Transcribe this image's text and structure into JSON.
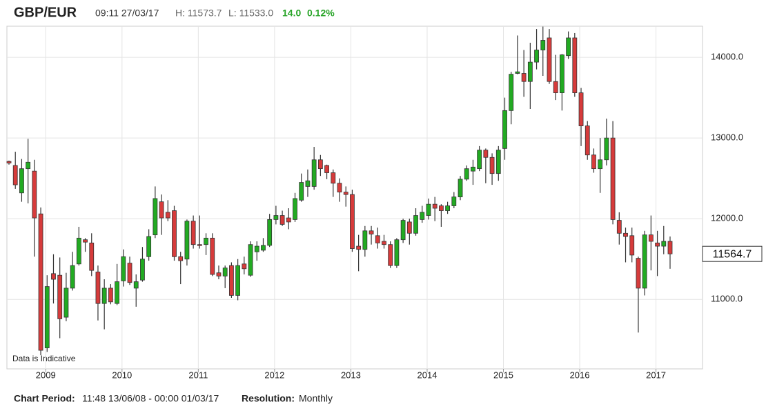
{
  "header": {
    "instrument": "GBP/EUR",
    "time": "09:11 27/03/17",
    "high": "H: 11573.7",
    "low": "L: 11533.0",
    "change": "14.0",
    "change_pct": "0.12%"
  },
  "footer": {
    "period_label": "Chart Period:",
    "period": "11:48 13/06/08 - 00:00 01/03/17",
    "resolution_label": "Resolution:",
    "resolution": "Monthly"
  },
  "chart_data": {
    "type": "candlestick",
    "annotation": "Data is Indicative",
    "up_color": "#22aa22",
    "down_color": "#d63b3b",
    "grid": true,
    "ylim": [
      10140,
      14385
    ],
    "yticks": [
      {
        "value": 11000,
        "label": "11000.0"
      },
      {
        "value": 12000,
        "label": "12000.0"
      },
      {
        "value": 13000,
        "label": "13000.0"
      },
      {
        "value": 14000,
        "label": "14000.0"
      }
    ],
    "categories": [
      null,
      null,
      null,
      null,
      null,
      null,
      "2009",
      null,
      null,
      null,
      null,
      null,
      null,
      null,
      null,
      null,
      null,
      null,
      "2010",
      null,
      null,
      null,
      null,
      null,
      null,
      null,
      null,
      null,
      null,
      null,
      "2011",
      null,
      null,
      null,
      null,
      null,
      null,
      null,
      null,
      null,
      null,
      null,
      "2012",
      null,
      null,
      null,
      null,
      null,
      null,
      null,
      null,
      null,
      null,
      null,
      "2013",
      null,
      null,
      null,
      null,
      null,
      null,
      null,
      null,
      null,
      null,
      null,
      "2014",
      null,
      null,
      null,
      null,
      null,
      null,
      null,
      null,
      null,
      null,
      null,
      "2015",
      null,
      null,
      null,
      null,
      null,
      null,
      null,
      null,
      null,
      null,
      null,
      "2016",
      null,
      null,
      null,
      null,
      null,
      null,
      null,
      null,
      null,
      null,
      null,
      "2017",
      null,
      null
    ],
    "open": [
      12710,
      12660,
      12320,
      12620,
      12590,
      12060,
      10400,
      11320,
      11300,
      10780,
      11140,
      11440,
      11740,
      11700,
      11340,
      10950,
      11140,
      10950,
      11230,
      11450,
      11140,
      11240,
      11530,
      11800,
      12210,
      12080,
      12100,
      11530,
      11500,
      11970,
      11680,
      11680,
      11760,
      11330,
      11290,
      11420,
      11050,
      11440,
      11300,
      11590,
      11610,
      11670,
      11990,
      12040,
      12010,
      11990,
      12230,
      12400,
      12400,
      12730,
      12660,
      12570,
      12440,
      12330,
      12300,
      11660,
      11620,
      11850,
      11790,
      11720,
      11680,
      11420,
      11740,
      11960,
      11820,
      11990,
      12040,
      12180,
      12160,
      12100,
      12160,
      12270,
      12490,
      12590,
      12620,
      12850,
      12760,
      12560,
      12870,
      13340,
      13800,
      13800,
      13700,
      13940,
      14090,
      14240,
      13700,
      13560,
      14020,
      14240,
      13560,
      13150,
      12790,
      12620,
      12730,
      13000,
      11980,
      11820,
      11790,
      11510,
      11140,
      11800,
      11700,
      11660,
      11720
    ],
    "high": [
      12720,
      12830,
      12740,
      12990,
      12730,
      12140,
      11300,
      11560,
      11520,
      11330,
      11590,
      11900,
      11760,
      11820,
      11420,
      11250,
      11190,
      11440,
      11620,
      11530,
      11310,
      11650,
      11870,
      12400,
      12300,
      12230,
      12160,
      11590,
      11990,
      12040,
      12040,
      11820,
      11820,
      11420,
      11420,
      11460,
      11500,
      11530,
      11720,
      11720,
      11760,
      12060,
      12160,
      12100,
      12130,
      12320,
      12560,
      12610,
      12890,
      12790,
      12670,
      12610,
      12500,
      12400,
      12360,
      11800,
      11910,
      11910,
      11890,
      11800,
      11720,
      11760,
      12000,
      12000,
      12130,
      12160,
      12250,
      12270,
      12180,
      12210,
      12330,
      12530,
      12660,
      12730,
      12900,
      12870,
      12810,
      12900,
      13500,
      13820,
      14270,
      14090,
      14180,
      14350,
      14380,
      14350,
      14030,
      14040,
      14320,
      14300,
      13620,
      13210,
      12870,
      13000,
      13240,
      13210,
      12080,
      11890,
      11890,
      11530,
      11850,
      12040,
      11850,
      11910,
      11780
    ],
    "low": [
      12670,
      12370,
      12210,
      12190,
      11530,
      10310,
      10350,
      10950,
      10520,
      10730,
      11110,
      11420,
      11590,
      11290,
      10740,
      10630,
      10940,
      10930,
      11160,
      11180,
      10910,
      11220,
      11480,
      11760,
      11800,
      11970,
      11480,
      11190,
      11420,
      11630,
      11630,
      11550,
      11290,
      11250,
      11140,
      11020,
      10990,
      11310,
      11280,
      11480,
      11590,
      11650,
      11930,
      11910,
      11870,
      11960,
      12210,
      12270,
      12360,
      12530,
      12490,
      12270,
      12210,
      12150,
      11590,
      11350,
      11530,
      11680,
      11630,
      11630,
      11390,
      11390,
      11700,
      11680,
      11790,
      11950,
      11990,
      11970,
      11900,
      12060,
      12130,
      12230,
      12470,
      12420,
      12590,
      12440,
      12420,
      12470,
      12730,
      13170,
      13790,
      13510,
      13360,
      13850,
      13770,
      13670,
      13470,
      13340,
      13980,
      13510,
      12900,
      12730,
      12570,
      12320,
      12660,
      11930,
      11680,
      11460,
      11460,
      10590,
      11050,
      11360,
      11290,
      11560,
      11380
    ],
    "close": [
      12690,
      12420,
      12620,
      12700,
      12010,
      10370,
      11160,
      11250,
      10760,
      11140,
      11420,
      11760,
      11710,
      11360,
      10950,
      11140,
      10970,
      11220,
      11530,
      11210,
      11220,
      11500,
      11780,
      12250,
      12010,
      12010,
      11530,
      11480,
      11970,
      11680,
      11670,
      11760,
      11310,
      11290,
      11390,
      11050,
      11420,
      11380,
      11680,
      11660,
      11670,
      11990,
      12040,
      11930,
      11960,
      12250,
      12450,
      12470,
      12730,
      12620,
      12570,
      12440,
      12330,
      12300,
      11630,
      11620,
      11850,
      11810,
      11700,
      11680,
      11420,
      11740,
      11980,
      11820,
      12040,
      12080,
      12180,
      12130,
      12100,
      12160,
      12270,
      12490,
      12620,
      12640,
      12850,
      12760,
      12560,
      12850,
      13340,
      13790,
      13820,
      13700,
      13940,
      14090,
      14210,
      13700,
      13560,
      14030,
      14240,
      13560,
      13150,
      12790,
      12620,
      12730,
      13000,
      11990,
      11820,
      11780,
      11550,
      11140,
      11800,
      11720,
      11660,
      11720,
      11564.7
    ]
  }
}
